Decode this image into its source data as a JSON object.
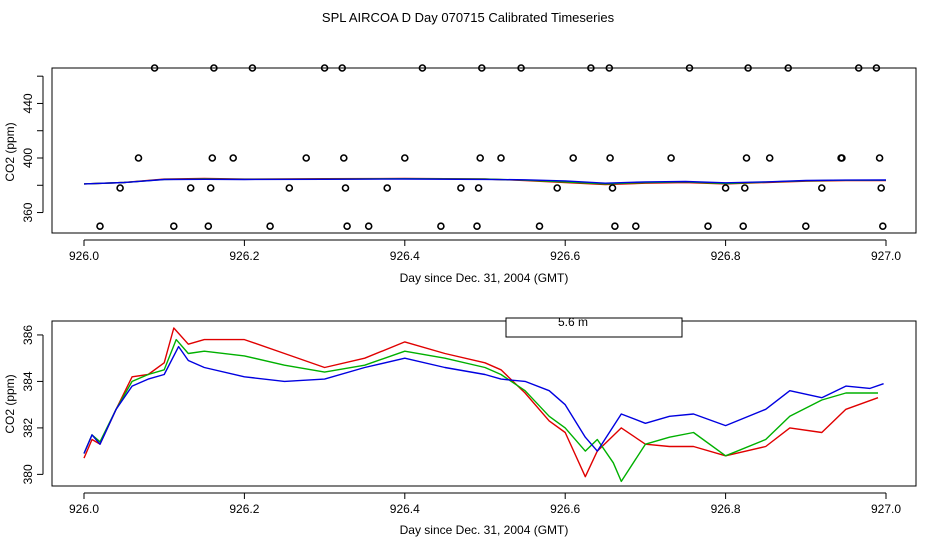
{
  "title": "SPL AIRCOA D  Day 070715  Calibrated Timeseries",
  "chart_data": [
    {
      "type": "scatter",
      "name": "top-panel",
      "xlabel": "Day since Dec. 31, 2004 (GMT)",
      "ylabel": "CO2 (ppm)",
      "xlim": [
        926.0,
        927.0
      ],
      "ylim": [
        345,
        466
      ],
      "xticks": [
        926.0,
        926.2,
        926.4,
        926.6,
        926.8,
        927.0
      ],
      "xtick_labels": [
        "926.0",
        "926.2",
        "926.4",
        "926.6",
        "926.8",
        "927.0"
      ],
      "yticks": [
        360,
        380,
        400,
        420,
        440,
        460
      ],
      "ytick_labels": [
        "360",
        "",
        "400",
        "",
        "440",
        ""
      ],
      "calibration_points": {
        "x": [
          926.02,
          926.045,
          926.068,
          926.088,
          926.112,
          926.133,
          926.155,
          926.158,
          926.16,
          926.162,
          926.186,
          926.21,
          926.232,
          926.256,
          926.277,
          926.3,
          926.322,
          926.324,
          926.326,
          926.328,
          926.355,
          926.378,
          926.4,
          926.422,
          926.445,
          926.47,
          926.49,
          926.492,
          926.494,
          926.496,
          926.52,
          926.545,
          926.568,
          926.59,
          926.61,
          926.632,
          926.655,
          926.656,
          926.659,
          926.662,
          926.688,
          926.732,
          926.755,
          926.778,
          926.8,
          926.822,
          926.824,
          926.826,
          926.828,
          926.855,
          926.878,
          926.9,
          926.92,
          926.944,
          926.945,
          926.966,
          926.988,
          926.992,
          926.994,
          926.996
        ],
        "y": [
          350,
          378,
          400,
          466,
          350,
          378,
          350,
          378,
          400,
          466,
          400,
          466,
          350,
          378,
          400,
          466,
          466,
          400,
          378,
          350,
          350,
          378,
          400,
          466,
          350,
          378,
          350,
          378,
          400,
          466,
          400,
          466,
          350,
          378,
          400,
          466,
          466,
          400,
          378,
          350,
          350,
          400,
          466,
          350,
          378,
          350,
          378,
          400,
          466,
          400,
          466,
          350,
          378,
          400,
          400,
          466,
          466,
          400,
          378,
          350
        ]
      },
      "series": [
        {
          "name": "red",
          "color": "#e00000",
          "x": [
            926.0,
            926.05,
            926.1,
            926.15,
            926.2,
            926.3,
            926.4,
            926.5,
            926.55,
            926.6,
            926.65,
            926.7,
            926.75,
            926.8,
            926.85,
            926.9,
            926.95,
            927.0
          ],
          "y": [
            381,
            382,
            384.5,
            385,
            384.5,
            384.8,
            385,
            384.6,
            383.5,
            382,
            380.5,
            381.5,
            382,
            381,
            382,
            383,
            383.5,
            383.5
          ]
        },
        {
          "name": "green",
          "color": "#00b000",
          "x": [
            926.0,
            926.05,
            926.1,
            926.15,
            926.2,
            926.3,
            926.4,
            926.5,
            926.55,
            926.6,
            926.65,
            926.7,
            926.75,
            926.8,
            926.85,
            926.9,
            926.95,
            927.0
          ],
          "y": [
            381,
            382,
            384.3,
            384.7,
            384.4,
            384.5,
            384.8,
            384.5,
            383.7,
            382.5,
            381,
            382,
            382.5,
            381.3,
            382.3,
            383.3,
            383.7,
            383.7
          ]
        },
        {
          "name": "blue",
          "color": "#0000e0",
          "x": [
            926.0,
            926.05,
            926.1,
            926.15,
            926.2,
            926.3,
            926.4,
            926.5,
            926.55,
            926.6,
            926.65,
            926.7,
            926.75,
            926.8,
            926.85,
            926.9,
            926.95,
            927.0
          ],
          "y": [
            381,
            382,
            384.2,
            384.4,
            384.2,
            384.4,
            384.6,
            384.3,
            384,
            383.2,
            381.5,
            382.5,
            382.8,
            381.8,
            382.5,
            383.5,
            383.8,
            383.9
          ]
        }
      ]
    },
    {
      "type": "line",
      "name": "bottom-panel",
      "xlabel": "Day since Dec. 31, 2004 (GMT)",
      "ylabel": "CO2 (ppm)",
      "xlim": [
        926.0,
        927.0
      ],
      "ylim": [
        379.5,
        386.6
      ],
      "xticks": [
        926.0,
        926.2,
        926.4,
        926.6,
        926.8,
        927.0
      ],
      "xtick_labels": [
        "926.0",
        "926.2",
        "926.4",
        "926.6",
        "926.8",
        "927.0"
      ],
      "yticks": [
        380,
        382,
        384,
        386
      ],
      "ytick_labels": [
        "380",
        "382",
        "384",
        "386"
      ],
      "legend_label": "5.6 m",
      "series": [
        {
          "name": "red",
          "color": "#e00000",
          "x": [
            926.0,
            926.01,
            926.02,
            926.04,
            926.06,
            926.08,
            926.1,
            926.112,
            926.13,
            926.15,
            926.2,
            926.25,
            926.3,
            926.35,
            926.4,
            926.45,
            926.5,
            926.52,
            926.55,
            926.58,
            926.6,
            926.625,
            926.64,
            926.67,
            926.7,
            926.73,
            926.76,
            926.8,
            926.85,
            926.88,
            926.92,
            926.95,
            926.99
          ],
          "y": [
            380.7,
            381.5,
            381.3,
            382.8,
            384.2,
            384.3,
            384.8,
            386.3,
            385.6,
            385.8,
            385.8,
            385.2,
            384.6,
            385,
            385.7,
            385.2,
            384.8,
            384.5,
            383.5,
            382.3,
            381.8,
            379.9,
            381,
            382,
            381.3,
            381.2,
            381.2,
            380.8,
            381.2,
            382,
            381.8,
            382.8,
            383.3
          ]
        },
        {
          "name": "green",
          "color": "#00b000",
          "x": [
            926.0,
            926.01,
            926.02,
            926.04,
            926.06,
            926.08,
            926.1,
            926.115,
            926.13,
            926.15,
            926.2,
            926.25,
            926.3,
            926.35,
            926.4,
            926.45,
            926.5,
            926.52,
            926.55,
            926.58,
            926.6,
            926.625,
            926.64,
            926.66,
            926.67,
            926.7,
            926.73,
            926.76,
            926.8,
            926.85,
            926.88,
            926.92,
            926.95,
            926.99
          ],
          "y": [
            380.9,
            381.7,
            381.4,
            382.8,
            384,
            384.3,
            384.5,
            385.8,
            385.2,
            385.3,
            385.1,
            384.7,
            384.4,
            384.7,
            385.3,
            385,
            384.6,
            384.3,
            383.6,
            382.5,
            382,
            381,
            381.5,
            380.5,
            379.7,
            381.3,
            381.6,
            381.8,
            380.8,
            381.5,
            382.5,
            383.2,
            383.5,
            383.5
          ]
        },
        {
          "name": "blue",
          "color": "#0000e0",
          "x": [
            926.0,
            926.01,
            926.02,
            926.04,
            926.06,
            926.08,
            926.1,
            926.118,
            926.13,
            926.15,
            926.2,
            926.25,
            926.3,
            926.35,
            926.4,
            926.45,
            926.5,
            926.52,
            926.55,
            926.58,
            926.6,
            926.625,
            926.64,
            926.67,
            926.7,
            926.73,
            926.76,
            926.8,
            926.85,
            926.88,
            926.92,
            926.95,
            926.98,
            926.997
          ],
          "y": [
            380.9,
            381.7,
            381.3,
            382.8,
            383.8,
            384.1,
            384.3,
            385.5,
            384.9,
            384.6,
            384.2,
            384,
            384.1,
            384.6,
            385,
            384.6,
            384.3,
            384.1,
            384,
            383.6,
            383,
            381.6,
            381,
            382.6,
            382.2,
            382.5,
            382.6,
            382.1,
            382.8,
            383.6,
            383.3,
            383.8,
            383.7,
            383.9
          ]
        }
      ]
    }
  ]
}
